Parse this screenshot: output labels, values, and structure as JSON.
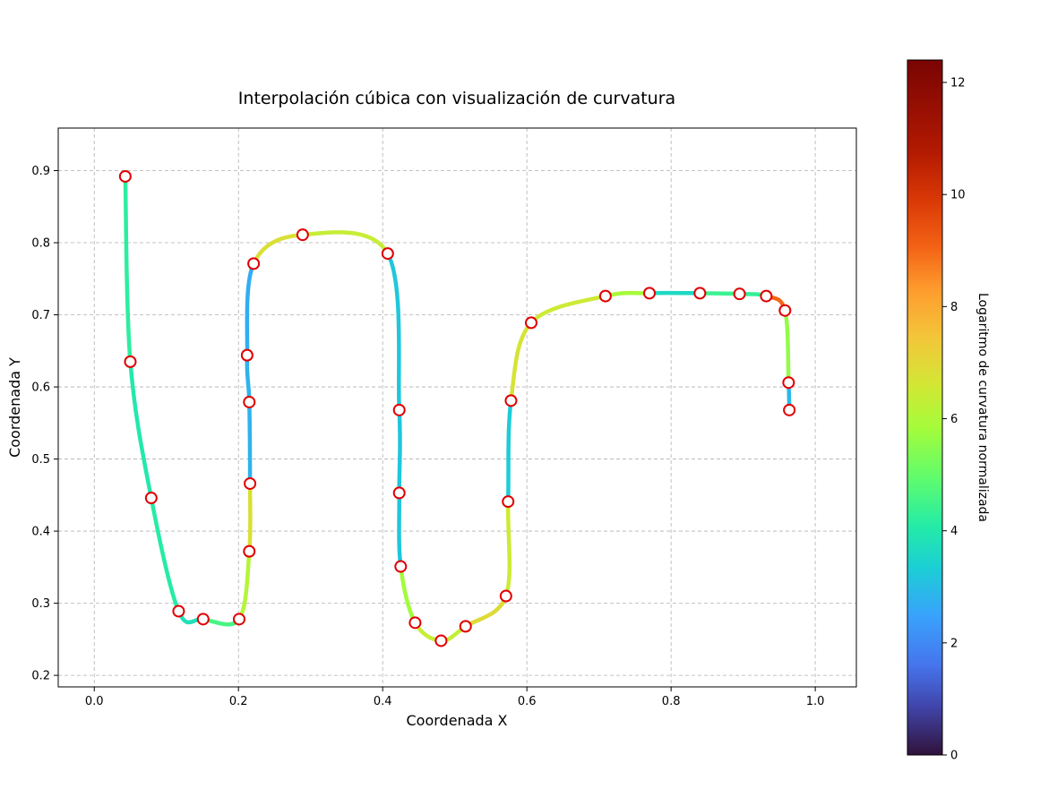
{
  "chart_data": {
    "type": "line",
    "title": "Interpolación cúbica con visualización de curvatura",
    "xlabel": "Coordenada X",
    "ylabel": "Coordenada Y",
    "xlim": [
      -0.05,
      1.057
    ],
    "ylim": [
      0.184,
      0.959
    ],
    "x_ticks": [
      "0.0",
      "0.2",
      "0.4",
      "0.6",
      "0.8",
      "1.0"
    ],
    "y_ticks": [
      "0.2",
      "0.3",
      "0.4",
      "0.5",
      "0.6",
      "0.7",
      "0.8",
      "0.9"
    ],
    "grid": true,
    "colormap": "turbo",
    "colorbar": {
      "label": "Logaritmo de curvatura normalizada",
      "range": [
        0,
        12.4
      ],
      "ticks": [
        "0",
        "2",
        "4",
        "6",
        "8",
        "10",
        "12"
      ]
    },
    "control_points": [
      {
        "x": 0.043,
        "y": 0.892
      },
      {
        "x": 0.05,
        "y": 0.635
      },
      {
        "x": 0.079,
        "y": 0.446
      },
      {
        "x": 0.117,
        "y": 0.289
      },
      {
        "x": 0.151,
        "y": 0.278
      },
      {
        "x": 0.201,
        "y": 0.278
      },
      {
        "x": 0.215,
        "y": 0.372
      },
      {
        "x": 0.216,
        "y": 0.466
      },
      {
        "x": 0.215,
        "y": 0.579
      },
      {
        "x": 0.212,
        "y": 0.644
      },
      {
        "x": 0.221,
        "y": 0.771
      },
      {
        "x": 0.289,
        "y": 0.811
      },
      {
        "x": 0.407,
        "y": 0.785
      },
      {
        "x": 0.423,
        "y": 0.568
      },
      {
        "x": 0.423,
        "y": 0.453
      },
      {
        "x": 0.425,
        "y": 0.351
      },
      {
        "x": 0.445,
        "y": 0.273
      },
      {
        "x": 0.481,
        "y": 0.248
      },
      {
        "x": 0.515,
        "y": 0.268
      },
      {
        "x": 0.571,
        "y": 0.31
      },
      {
        "x": 0.574,
        "y": 0.441
      },
      {
        "x": 0.578,
        "y": 0.581
      },
      {
        "x": 0.606,
        "y": 0.689
      },
      {
        "x": 0.709,
        "y": 0.726
      },
      {
        "x": 0.77,
        "y": 0.73
      },
      {
        "x": 0.84,
        "y": 0.73
      },
      {
        "x": 0.895,
        "y": 0.729
      },
      {
        "x": 0.932,
        "y": 0.726
      },
      {
        "x": 0.958,
        "y": 0.706
      },
      {
        "x": 0.963,
        "y": 0.606
      },
      {
        "x": 0.964,
        "y": 0.568
      }
    ],
    "curve_color_values": [
      4.2,
      4.0,
      4.1,
      3.8,
      4.6,
      6.1,
      6.8,
      2.8,
      2.8,
      2.7,
      6.8,
      6.4,
      3.2,
      3.2,
      3.2,
      5.8,
      6.4,
      6.3,
      6.9,
      6.5,
      3.3,
      6.7,
      6.5,
      5.9,
      3.6,
      4.4,
      4.3,
      9.0,
      5.6,
      2.9
    ]
  }
}
